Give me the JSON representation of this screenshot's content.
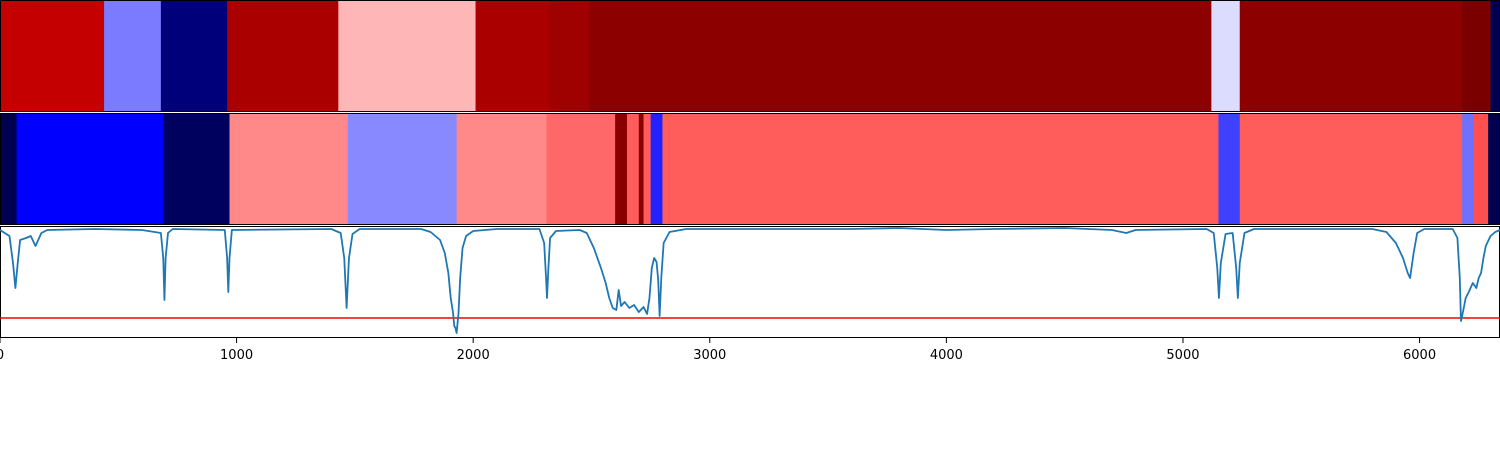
{
  "chart_data": {
    "type": "heatmap",
    "title": "",
    "xlabel": "",
    "ylabel": "",
    "xlim": [
      0,
      6340
    ],
    "xticks": [
      0,
      1000,
      2000,
      3000,
      4000,
      5000,
      6000
    ],
    "xtick_labels": [
      "0",
      "1000",
      "2000",
      "3000",
      "4000",
      "5000",
      "6000"
    ],
    "colormap": "seismic",
    "grid": false,
    "legend": "none",
    "tracks": [
      {
        "segments": [
          {
            "start": 0,
            "end": 440,
            "color": "#c40000"
          },
          {
            "start": 440,
            "end": 680,
            "color": "#7b7bff"
          },
          {
            "start": 680,
            "end": 960,
            "color": "#00007a"
          },
          {
            "start": 960,
            "end": 1430,
            "color": "#ab0000"
          },
          {
            "start": 1430,
            "end": 2010,
            "color": "#ffb6b6"
          },
          {
            "start": 2010,
            "end": 2320,
            "color": "#ab0000"
          },
          {
            "start": 2320,
            "end": 2490,
            "color": "#9f0000"
          },
          {
            "start": 2490,
            "end": 5120,
            "color": "#8d0000"
          },
          {
            "start": 5120,
            "end": 5240,
            "color": "#dcdcff"
          },
          {
            "start": 5240,
            "end": 6180,
            "color": "#8d0000"
          },
          {
            "start": 6180,
            "end": 6300,
            "color": "#7a0000"
          },
          {
            "start": 6300,
            "end": 6340,
            "color": "#000054"
          }
        ]
      },
      {
        "segments": [
          {
            "start": 0,
            "end": 70,
            "color": "#000050"
          },
          {
            "start": 70,
            "end": 690,
            "color": "#0000ff"
          },
          {
            "start": 690,
            "end": 970,
            "color": "#00005e"
          },
          {
            "start": 970,
            "end": 1470,
            "color": "#ff8888"
          },
          {
            "start": 1470,
            "end": 1930,
            "color": "#8888ff"
          },
          {
            "start": 1930,
            "end": 2310,
            "color": "#ff8888"
          },
          {
            "start": 2310,
            "end": 2600,
            "color": "#ff6868"
          },
          {
            "start": 2600,
            "end": 2650,
            "color": "#8a0000"
          },
          {
            "start": 2650,
            "end": 2700,
            "color": "#ff5c5c"
          },
          {
            "start": 2700,
            "end": 2720,
            "color": "#8a0000"
          },
          {
            "start": 2720,
            "end": 2750,
            "color": "#ff5c5c"
          },
          {
            "start": 2750,
            "end": 2800,
            "color": "#2222ff"
          },
          {
            "start": 2800,
            "end": 5150,
            "color": "#ff5c5c"
          },
          {
            "start": 5150,
            "end": 5240,
            "color": "#4040ff"
          },
          {
            "start": 5240,
            "end": 6180,
            "color": "#ff5c5c"
          },
          {
            "start": 6180,
            "end": 6230,
            "color": "#7070ff"
          },
          {
            "start": 6230,
            "end": 6290,
            "color": "#ff5050"
          },
          {
            "start": 6290,
            "end": 6340,
            "color": "#000050"
          }
        ]
      }
    ],
    "line": {
      "color": "#1f77b4",
      "ylim": [
        -1.1,
        0.02
      ],
      "points": [
        [
          0,
          -0.02
        ],
        [
          40,
          -0.08
        ],
        [
          55,
          -0.35
        ],
        [
          65,
          -0.6
        ],
        [
          75,
          -0.35
        ],
        [
          85,
          -0.12
        ],
        [
          110,
          -0.1
        ],
        [
          130,
          -0.08
        ],
        [
          150,
          -0.18
        ],
        [
          175,
          -0.05
        ],
        [
          200,
          -0.02
        ],
        [
          400,
          -0.01
        ],
        [
          600,
          -0.02
        ],
        [
          680,
          -0.05
        ],
        [
          690,
          -0.3
        ],
        [
          695,
          -0.72
        ],
        [
          700,
          -0.3
        ],
        [
          710,
          -0.05
        ],
        [
          730,
          -0.01
        ],
        [
          950,
          -0.02
        ],
        [
          960,
          -0.3
        ],
        [
          965,
          -0.64
        ],
        [
          970,
          -0.3
        ],
        [
          980,
          -0.02
        ],
        [
          1400,
          -0.01
        ],
        [
          1440,
          -0.05
        ],
        [
          1455,
          -0.3
        ],
        [
          1465,
          -0.8
        ],
        [
          1475,
          -0.3
        ],
        [
          1490,
          -0.06
        ],
        [
          1520,
          -0.01
        ],
        [
          1780,
          -0.01
        ],
        [
          1820,
          -0.04
        ],
        [
          1860,
          -0.12
        ],
        [
          1880,
          -0.25
        ],
        [
          1895,
          -0.45
        ],
        [
          1905,
          -0.7
        ],
        [
          1915,
          -0.85
        ],
        [
          1920,
          -0.98
        ],
        [
          1925,
          -1.0
        ],
        [
          1930,
          -1.05
        ],
        [
          1938,
          -0.85
        ],
        [
          1945,
          -0.5
        ],
        [
          1955,
          -0.2
        ],
        [
          1970,
          -0.08
        ],
        [
          2000,
          -0.03
        ],
        [
          2100,
          -0.01
        ],
        [
          2280,
          -0.01
        ],
        [
          2300,
          -0.15
        ],
        [
          2308,
          -0.5
        ],
        [
          2312,
          -0.7
        ],
        [
          2318,
          -0.4
        ],
        [
          2325,
          -0.1
        ],
        [
          2350,
          -0.03
        ],
        [
          2450,
          -0.02
        ],
        [
          2480,
          -0.05
        ],
        [
          2510,
          -0.2
        ],
        [
          2540,
          -0.4
        ],
        [
          2560,
          -0.55
        ],
        [
          2575,
          -0.7
        ],
        [
          2590,
          -0.8
        ],
        [
          2605,
          -0.82
        ],
        [
          2615,
          -0.62
        ],
        [
          2625,
          -0.78
        ],
        [
          2640,
          -0.74
        ],
        [
          2660,
          -0.8
        ],
        [
          2680,
          -0.77
        ],
        [
          2700,
          -0.84
        ],
        [
          2720,
          -0.79
        ],
        [
          2735,
          -0.86
        ],
        [
          2745,
          -0.7
        ],
        [
          2755,
          -0.4
        ],
        [
          2765,
          -0.3
        ],
        [
          2775,
          -0.34
        ],
        [
          2782,
          -0.52
        ],
        [
          2788,
          -0.88
        ],
        [
          2795,
          -0.5
        ],
        [
          2805,
          -0.15
        ],
        [
          2830,
          -0.04
        ],
        [
          2900,
          -0.01
        ],
        [
          3100,
          -0.01
        ],
        [
          3600,
          -0.01
        ],
        [
          3800,
          0.0
        ],
        [
          4000,
          -0.02
        ],
        [
          4200,
          -0.01
        ],
        [
          4500,
          0.0
        ],
        [
          4700,
          -0.02
        ],
        [
          4760,
          -0.05
        ],
        [
          4800,
          -0.02
        ],
        [
          5100,
          -0.01
        ],
        [
          5130,
          -0.05
        ],
        [
          5145,
          -0.4
        ],
        [
          5152,
          -0.7
        ],
        [
          5160,
          -0.35
        ],
        [
          5180,
          -0.06
        ],
        [
          5210,
          -0.05
        ],
        [
          5225,
          -0.4
        ],
        [
          5232,
          -0.7
        ],
        [
          5240,
          -0.35
        ],
        [
          5260,
          -0.05
        ],
        [
          5300,
          -0.01
        ],
        [
          5800,
          -0.01
        ],
        [
          5860,
          -0.04
        ],
        [
          5900,
          -0.15
        ],
        [
          5930,
          -0.3
        ],
        [
          5950,
          -0.45
        ],
        [
          5960,
          -0.5
        ],
        [
          5975,
          -0.25
        ],
        [
          5990,
          -0.05
        ],
        [
          6020,
          -0.01
        ],
        [
          6140,
          -0.01
        ],
        [
          6160,
          -0.1
        ],
        [
          6170,
          -0.5
        ],
        [
          6175,
          -0.93
        ],
        [
          6180,
          -0.88
        ],
        [
          6195,
          -0.7
        ],
        [
          6210,
          -0.63
        ],
        [
          6225,
          -0.55
        ],
        [
          6240,
          -0.6
        ],
        [
          6250,
          -0.5
        ],
        [
          6260,
          -0.45
        ],
        [
          6270,
          -0.3
        ],
        [
          6280,
          -0.18
        ],
        [
          6300,
          -0.08
        ],
        [
          6320,
          -0.04
        ],
        [
          6340,
          -0.02
        ]
      ]
    },
    "threshold": {
      "value": -0.9,
      "color": "#ff0000"
    }
  }
}
